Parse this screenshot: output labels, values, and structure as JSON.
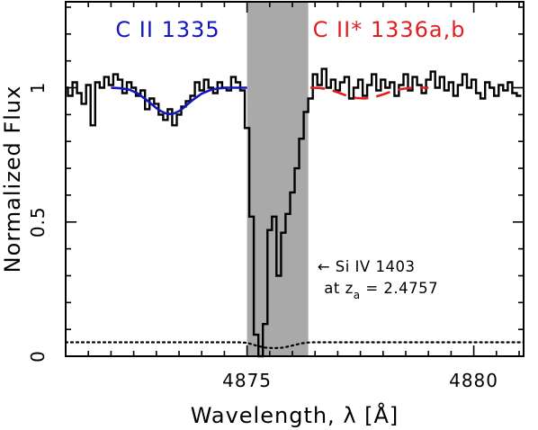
{
  "chart_data": {
    "type": "line",
    "title": "",
    "xlabel": "Wavelength, λ [Å]",
    "ylabel": "Normalized Flux",
    "xlim": [
      4871.0,
      4881.1
    ],
    "ylim": [
      0.0,
      1.32
    ],
    "xticks_labeled": [
      4875,
      4880
    ],
    "xtick_labels": [
      "4875",
      "4880"
    ],
    "yticks_labeled": [
      0,
      0.5,
      1
    ],
    "ytick_labels": [
      "0",
      "0.5",
      "1"
    ],
    "x_minor_step": 0.5,
    "y_minor_step": 0.1,
    "grid": false,
    "legend": "none",
    "shaded_region": {
      "x0": 4875.0,
      "x1": 4876.35,
      "color": "#a9a9a9"
    },
    "series": [
      {
        "kind": "histogram",
        "color": "#000000",
        "bin_width": 0.1,
        "x": [
          4871.0,
          4871.1,
          4871.2,
          4871.3,
          4871.4,
          4871.5,
          4871.6,
          4871.7,
          4871.8,
          4871.9,
          4872.0,
          4872.1,
          4872.2,
          4872.3,
          4872.4,
          4872.5,
          4872.6,
          4872.7,
          4872.8,
          4872.9,
          4873.0,
          4873.1,
          4873.2,
          4873.3,
          4873.4,
          4873.5,
          4873.6,
          4873.7,
          4873.8,
          4873.9,
          4874.0,
          4874.1,
          4874.2,
          4874.3,
          4874.4,
          4874.5,
          4874.6,
          4874.7,
          4874.8,
          4874.9,
          4875.0,
          4875.1,
          4875.2,
          4875.3,
          4875.4,
          4875.5,
          4875.6,
          4875.7,
          4875.8,
          4875.9,
          4876.0,
          4876.1,
          4876.2,
          4876.3,
          4876.4,
          4876.5,
          4876.6,
          4876.7,
          4876.8,
          4876.9,
          4877.0,
          4877.1,
          4877.2,
          4877.3,
          4877.4,
          4877.5,
          4877.6,
          4877.7,
          4877.8,
          4877.9,
          4878.0,
          4878.1,
          4878.2,
          4878.3,
          4878.4,
          4878.5,
          4878.6,
          4878.7,
          4878.8,
          4878.9,
          4879.0,
          4879.1,
          4879.2,
          4879.3,
          4879.4,
          4879.5,
          4879.6,
          4879.7,
          4879.8,
          4879.9,
          4880.0,
          4880.1,
          4880.2,
          4880.3,
          4880.4,
          4880.5,
          4880.6,
          4880.7,
          4880.8,
          4880.9,
          4881.0
        ],
        "y": [
          1.0,
          0.97,
          1.02,
          0.98,
          0.94,
          1.01,
          0.86,
          1.02,
          1.0,
          1.04,
          1.01,
          1.05,
          1.03,
          0.98,
          1.02,
          1.0,
          0.97,
          0.99,
          0.92,
          0.96,
          0.94,
          0.9,
          0.88,
          0.92,
          0.86,
          0.9,
          0.93,
          0.95,
          0.97,
          1.02,
          0.99,
          1.03,
          1.0,
          0.98,
          1.02,
          1.0,
          0.99,
          1.04,
          1.02,
          0.99,
          0.85,
          0.52,
          0.08,
          0.0,
          0.12,
          0.47,
          0.52,
          0.3,
          0.46,
          0.53,
          0.61,
          0.7,
          0.81,
          0.91,
          0.96,
          1.05,
          1.01,
          1.07,
          1.0,
          1.03,
          0.99,
          1.02,
          1.04,
          0.96,
          1.0,
          1.03,
          0.97,
          1.01,
          1.05,
          0.99,
          1.03,
          1.0,
          1.02,
          0.97,
          1.01,
          1.05,
          0.99,
          1.04,
          1.01,
          0.98,
          1.03,
          1.06,
          1.0,
          1.04,
          0.99,
          1.02,
          0.97,
          1.01,
          1.05,
          1.0,
          1.03,
          0.98,
          0.96,
          1.02,
          1.0,
          0.97,
          1.01,
          0.99,
          1.02,
          0.98,
          0.97
        ]
      },
      {
        "kind": "model",
        "style": "solid",
        "color": "#1515c0",
        "x": [
          4872.0,
          4872.2,
          4872.4,
          4872.6,
          4872.8,
          4873.0,
          4873.1,
          4873.2,
          4873.3,
          4873.4,
          4873.5,
          4873.6,
          4873.7,
          4873.8,
          4874.0,
          4874.2,
          4874.4,
          4874.6,
          4874.8,
          4875.0
        ],
        "y": [
          1.0,
          0.998,
          0.993,
          0.978,
          0.952,
          0.924,
          0.913,
          0.905,
          0.902,
          0.905,
          0.913,
          0.925,
          0.94,
          0.954,
          0.978,
          0.992,
          0.998,
          1.0,
          1.0,
          1.0
        ]
      },
      {
        "kind": "model",
        "style": "dashed",
        "color": "#e02020",
        "x": [
          4876.4,
          4876.6,
          4876.8,
          4877.0,
          4877.2,
          4877.4,
          4877.6,
          4877.8,
          4878.0,
          4878.2,
          4878.4,
          4878.6,
          4878.8,
          4879.0
        ],
        "y": [
          1.0,
          0.999,
          0.994,
          0.983,
          0.97,
          0.962,
          0.96,
          0.965,
          0.975,
          0.987,
          0.995,
          0.999,
          1.0,
          1.0
        ]
      },
      {
        "kind": "error",
        "style": "dotted",
        "color": "#000000",
        "x": [
          4871.0,
          4874.8,
          4875.0,
          4875.2,
          4875.4,
          4875.6,
          4875.8,
          4876.0,
          4876.2,
          4876.4,
          4881.1
        ],
        "y": [
          0.052,
          0.052,
          0.05,
          0.04,
          0.032,
          0.03,
          0.032,
          0.04,
          0.048,
          0.052,
          0.052
        ]
      }
    ],
    "annotations": [
      {
        "id": "cii",
        "text": "C II 1335",
        "color": "#1515c0",
        "x": 4872.1,
        "y": 1.19
      },
      {
        "id": "ciistar",
        "text": "C II* 1336a,b",
        "color": "#e02020",
        "x": 4876.45,
        "y": 1.19
      },
      {
        "id": "siiv1",
        "text": "← Si IV 1403",
        "color": "#000000",
        "x": 4876.55,
        "y": 0.315
      },
      {
        "id": "siiv2",
        "text": "at z",
        "sub": "a",
        "rest": " = 2.4757",
        "color": "#000000",
        "x": 4876.7,
        "y": 0.235
      }
    ]
  }
}
